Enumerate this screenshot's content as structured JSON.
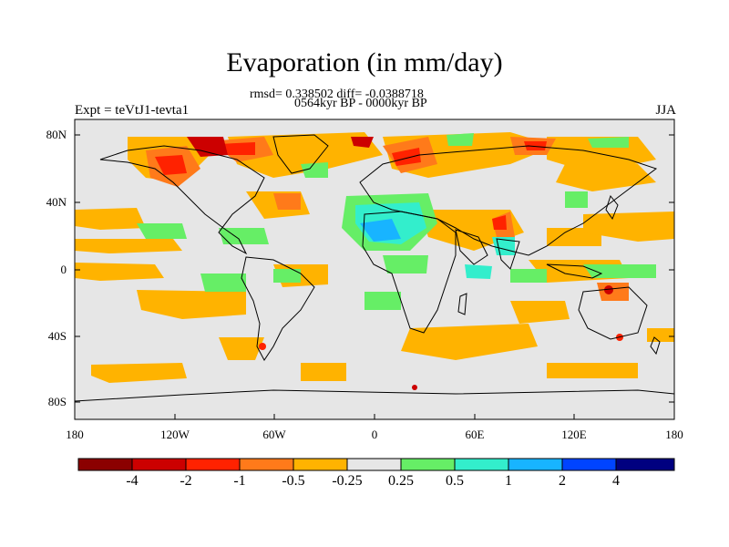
{
  "map": {
    "title": "Evaporation (in mm/day)",
    "subtitle_stats": "rmsd= 0.338502 diff= -0.0388718",
    "subtitle_period": "0564kyr BP - 0000kyr BP",
    "left_label": "Expt = teVtJ1-tevta1",
    "season": "JJA",
    "lat_ticks": [
      "80N",
      "40N",
      "0",
      "40S",
      "80S"
    ],
    "lon_ticks": [
      "180",
      "120W",
      "60W",
      "0",
      "60E",
      "120E",
      "180"
    ]
  },
  "colorbar": {
    "labels": [
      "-4",
      "-2",
      "-1",
      "-0.5",
      "-0.25",
      "0.25",
      "0.5",
      "1",
      "2",
      "4"
    ],
    "colors": [
      "#8b0000",
      "#cc0000",
      "#ff2200",
      "#ff7a1a",
      "#ffb300",
      "#e6e6e6",
      "#66ee66",
      "#33eecc",
      "#18b4ff",
      "#0044ff",
      "#000080"
    ]
  },
  "colors": {
    "ocean_bg": "#e6e6e6",
    "coast": "#000000"
  }
}
